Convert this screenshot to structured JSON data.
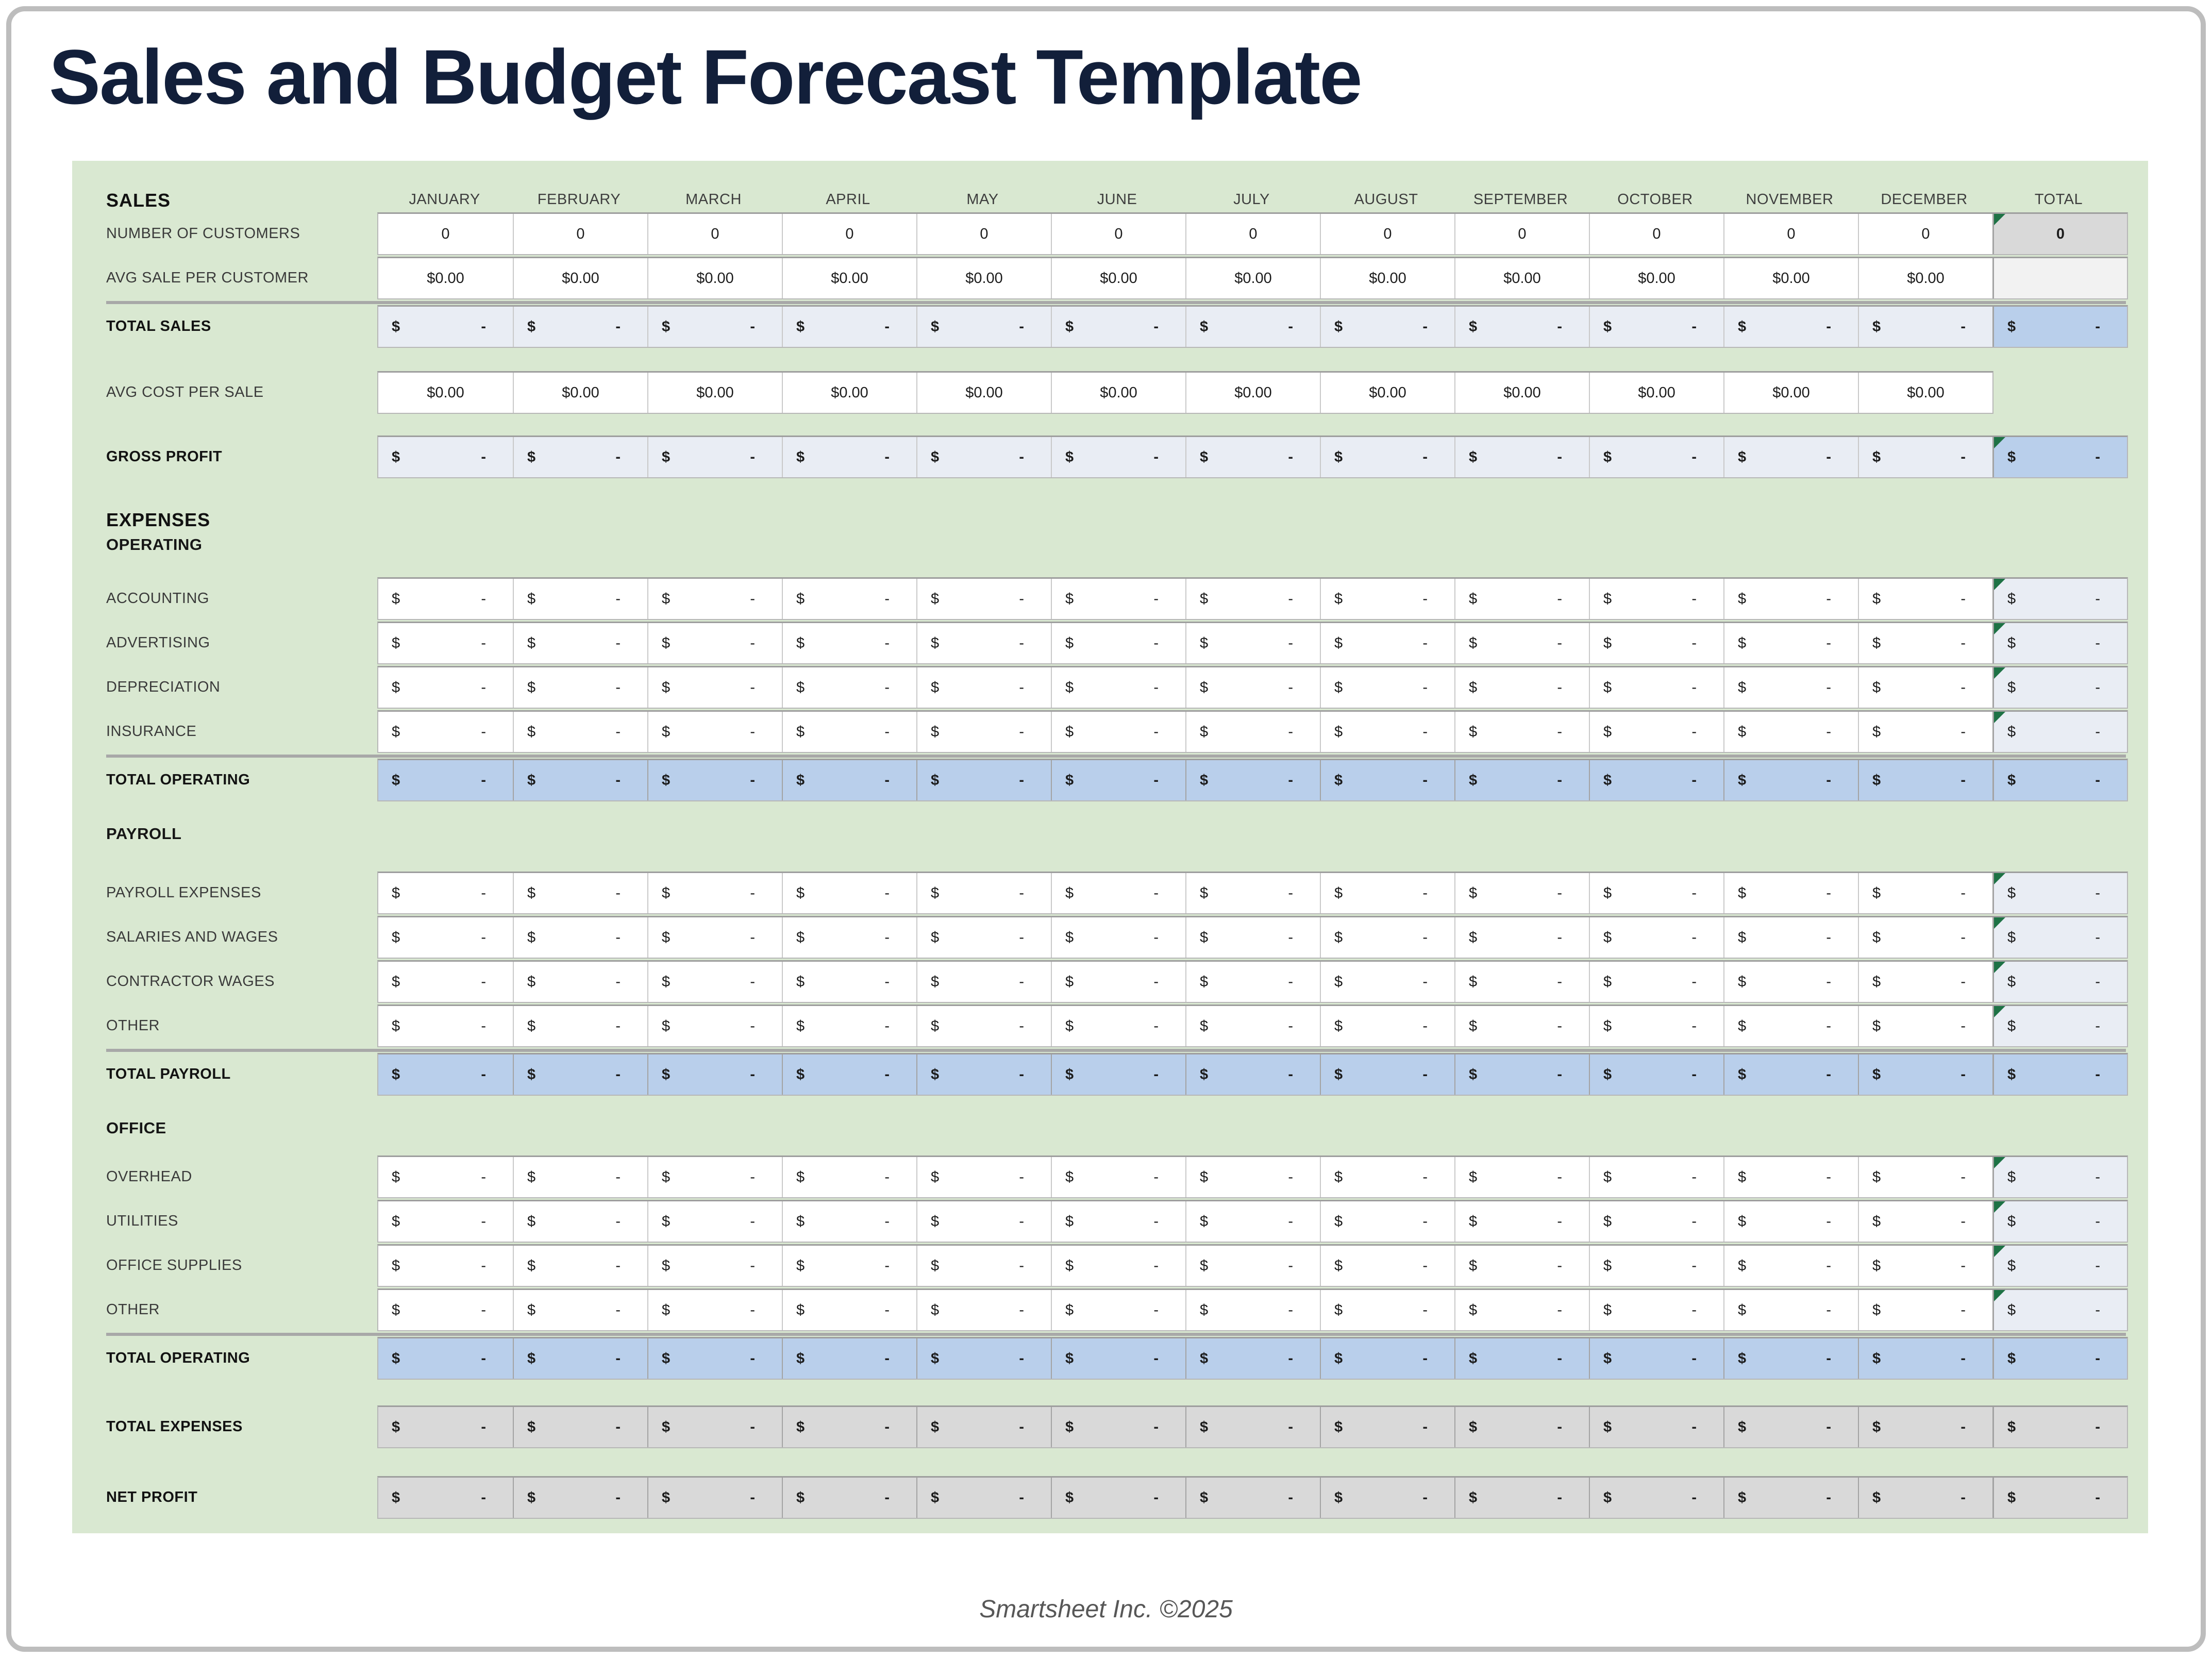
{
  "title": "Sales and Budget Forecast Template",
  "footer": "Smartsheet Inc. ©2025",
  "colors": {
    "frame_border": "#bdbdbd",
    "title": "#121f3a",
    "sheet_bg": "#d9e8d1",
    "cell_white": "#ffffff",
    "cell_subtle": "#e9edf4",
    "cell_blue": "#b9cfeb",
    "cell_gray": "#d9d9d9",
    "cell_faint": "#f2f2f2",
    "flag_green": "#1e7245",
    "divider": "#a8a8a8",
    "label_text": "#3a3a3a",
    "footer_text": "#575757"
  },
  "sheet": {
    "corner_label": "SALES",
    "months": [
      "JANUARY",
      "FEBRUARY",
      "MARCH",
      "APRIL",
      "MAY",
      "JUNE",
      "JULY",
      "AUGUST",
      "SEPTEMBER",
      "OCTOBER",
      "NOVEMBER",
      "DECEMBER"
    ],
    "total_label": "TOTAL",
    "formats": {
      "currency": "$",
      "zero_amount": "-"
    },
    "rows": [
      {
        "kind": "count",
        "id": "number-of-customers",
        "label": "NUMBER OF CUSTOMERS",
        "cell_value": "0",
        "total": {
          "bg": "grayrow",
          "value": "0",
          "bold": true,
          "flag": true
        }
      },
      {
        "kind": "money",
        "id": "avg-sale-per-customer",
        "label": "AVG SALE PER CUSTOMER",
        "cell_value": "$0.00",
        "total": {
          "bg": "faint",
          "value": ""
        }
      },
      {
        "kind": "divider"
      },
      {
        "kind": "acct",
        "id": "total-sales",
        "label": "TOTAL SALES",
        "bold": true,
        "bg": "subtle",
        "total": {
          "bg": "blue"
        }
      },
      {
        "kind": "money",
        "id": "avg-cost-per-sale",
        "label": "AVG COST PER SALE",
        "cell_value": "$0.00",
        "gap_before": 45,
        "total": null
      },
      {
        "kind": "acct",
        "id": "gross-profit",
        "label": "GROSS PROFIT",
        "bold": true,
        "bg": "subtle",
        "gap_before": 42,
        "total": {
          "bg": "blue",
          "flag": true
        }
      },
      {
        "kind": "section",
        "id": "expenses",
        "label": "EXPENSES",
        "gap_before": 56
      },
      {
        "kind": "subsection",
        "id": "operating",
        "label": "OPERATING",
        "gap_after": 40
      },
      {
        "kind": "acct",
        "id": "accounting",
        "label": "ACCOUNTING",
        "bg": "white",
        "total": {
          "bg": "subtle",
          "flag": true
        }
      },
      {
        "kind": "acct",
        "id": "advertising",
        "label": "ADVERTISING",
        "bg": "white",
        "total": {
          "bg": "subtle",
          "flag": true
        }
      },
      {
        "kind": "acct",
        "id": "depreciation",
        "label": "DEPRECIATION",
        "bg": "white",
        "total": {
          "bg": "subtle",
          "flag": true
        }
      },
      {
        "kind": "acct",
        "id": "insurance",
        "label": "INSURANCE",
        "bg": "white",
        "total": {
          "bg": "subtle",
          "flag": true
        }
      },
      {
        "kind": "divider"
      },
      {
        "kind": "acct",
        "id": "total-operating",
        "label": "TOTAL OPERATING",
        "bold": true,
        "bg": "blue",
        "total": {
          "bg": "blue"
        }
      },
      {
        "kind": "subsection",
        "id": "payroll",
        "label": "PAYROLL",
        "gap_before": 40,
        "gap_after": 50
      },
      {
        "kind": "acct",
        "id": "payroll-expenses",
        "label": "PAYROLL EXPENSES",
        "bg": "white",
        "total": {
          "bg": "subtle",
          "flag": true
        }
      },
      {
        "kind": "acct",
        "id": "salaries-and-wages",
        "label": "SALARIES AND WAGES",
        "bg": "white",
        "total": {
          "bg": "subtle",
          "flag": true
        }
      },
      {
        "kind": "acct",
        "id": "contractor-wages",
        "label": "CONTRACTOR WAGES",
        "bg": "white",
        "total": {
          "bg": "subtle",
          "flag": true
        }
      },
      {
        "kind": "acct",
        "id": "other-payroll",
        "label": "OTHER",
        "bg": "white",
        "total": {
          "bg": "subtle",
          "flag": true
        }
      },
      {
        "kind": "divider"
      },
      {
        "kind": "acct",
        "id": "total-payroll",
        "label": "TOTAL PAYROLL",
        "bold": true,
        "bg": "blue",
        "total": {
          "bg": "blue"
        }
      },
      {
        "kind": "subsection",
        "id": "office",
        "label": "OFFICE",
        "gap_before": 40,
        "gap_after": 30
      },
      {
        "kind": "acct",
        "id": "overhead",
        "label": "OVERHEAD",
        "bg": "white",
        "total": {
          "bg": "subtle",
          "flag": true
        }
      },
      {
        "kind": "acct",
        "id": "utilities",
        "label": "UTILITIES",
        "bg": "white",
        "total": {
          "bg": "subtle",
          "flag": true
        }
      },
      {
        "kind": "acct",
        "id": "office-supplies",
        "label": "OFFICE SUPPLIES",
        "bg": "white",
        "total": {
          "bg": "subtle",
          "flag": true
        }
      },
      {
        "kind": "acct",
        "id": "other-office",
        "label": "OTHER",
        "bg": "white",
        "total": {
          "bg": "subtle",
          "flag": true
        }
      },
      {
        "kind": "divider"
      },
      {
        "kind": "acct",
        "id": "total-operating-office",
        "label": "TOTAL OPERATING",
        "bold": true,
        "bg": "blue",
        "total": {
          "bg": "blue"
        }
      },
      {
        "kind": "acct",
        "id": "total-expenses",
        "label": "TOTAL EXPENSES",
        "bold": true,
        "bg": "grayrow",
        "gap_before": 50,
        "total": {
          "bg": "grayrow"
        }
      },
      {
        "kind": "acct",
        "id": "net-profit",
        "label": "NET PROFIT",
        "bold": true,
        "bg": "grayrow",
        "gap_before": 54,
        "total": {
          "bg": "grayrow"
        }
      }
    ]
  }
}
